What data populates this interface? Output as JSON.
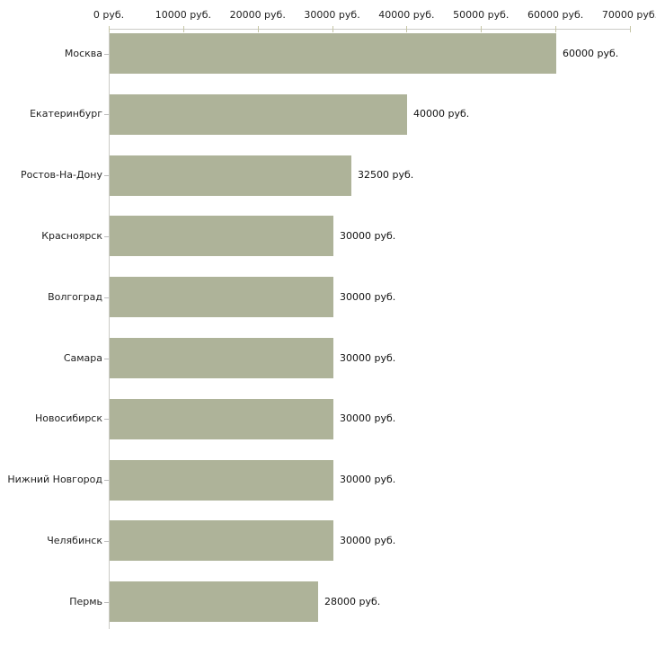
{
  "chart_data": {
    "type": "bar",
    "orientation": "horizontal",
    "title": "",
    "xlabel": "",
    "ylabel": "",
    "unit": "руб.",
    "categories": [
      "Москва",
      "Екатеринбург",
      "Ростов-На-Дону",
      "Красноярск",
      "Волгоград",
      "Самара",
      "Новосибирск",
      "Нижний Новгород",
      "Челябинск",
      "Пермь"
    ],
    "values": [
      60000,
      40000,
      32500,
      30000,
      30000,
      30000,
      30000,
      30000,
      30000,
      28000
    ],
    "value_labels": [
      "60000 руб.",
      "40000 руб.",
      "32500 руб.",
      "30000 руб.",
      "30000 руб.",
      "30000 руб.",
      "30000 руб.",
      "30000 руб.",
      "30000 руб.",
      "28000 руб."
    ],
    "xlim": [
      0,
      70000
    ],
    "x_ticks": [
      0,
      10000,
      20000,
      30000,
      40000,
      50000,
      60000,
      70000
    ],
    "x_tick_labels": [
      "0 руб.",
      "10000 руб.",
      "20000 руб.",
      "30000 руб.",
      "40000 руб.",
      "50000 руб.",
      "60000 руб.",
      "70000 руб."
    ],
    "grid": false,
    "legend": null,
    "axis_position": "top",
    "colors": {
      "bar_fill": "#aeb399",
      "axis_line": "#cbcbc6",
      "x_tick_mark": "#c6c6a6",
      "category_tick_mark": "#bcbcbc",
      "label_text": "#222222",
      "value_text": "#111111",
      "background": "#ffffff"
    }
  }
}
